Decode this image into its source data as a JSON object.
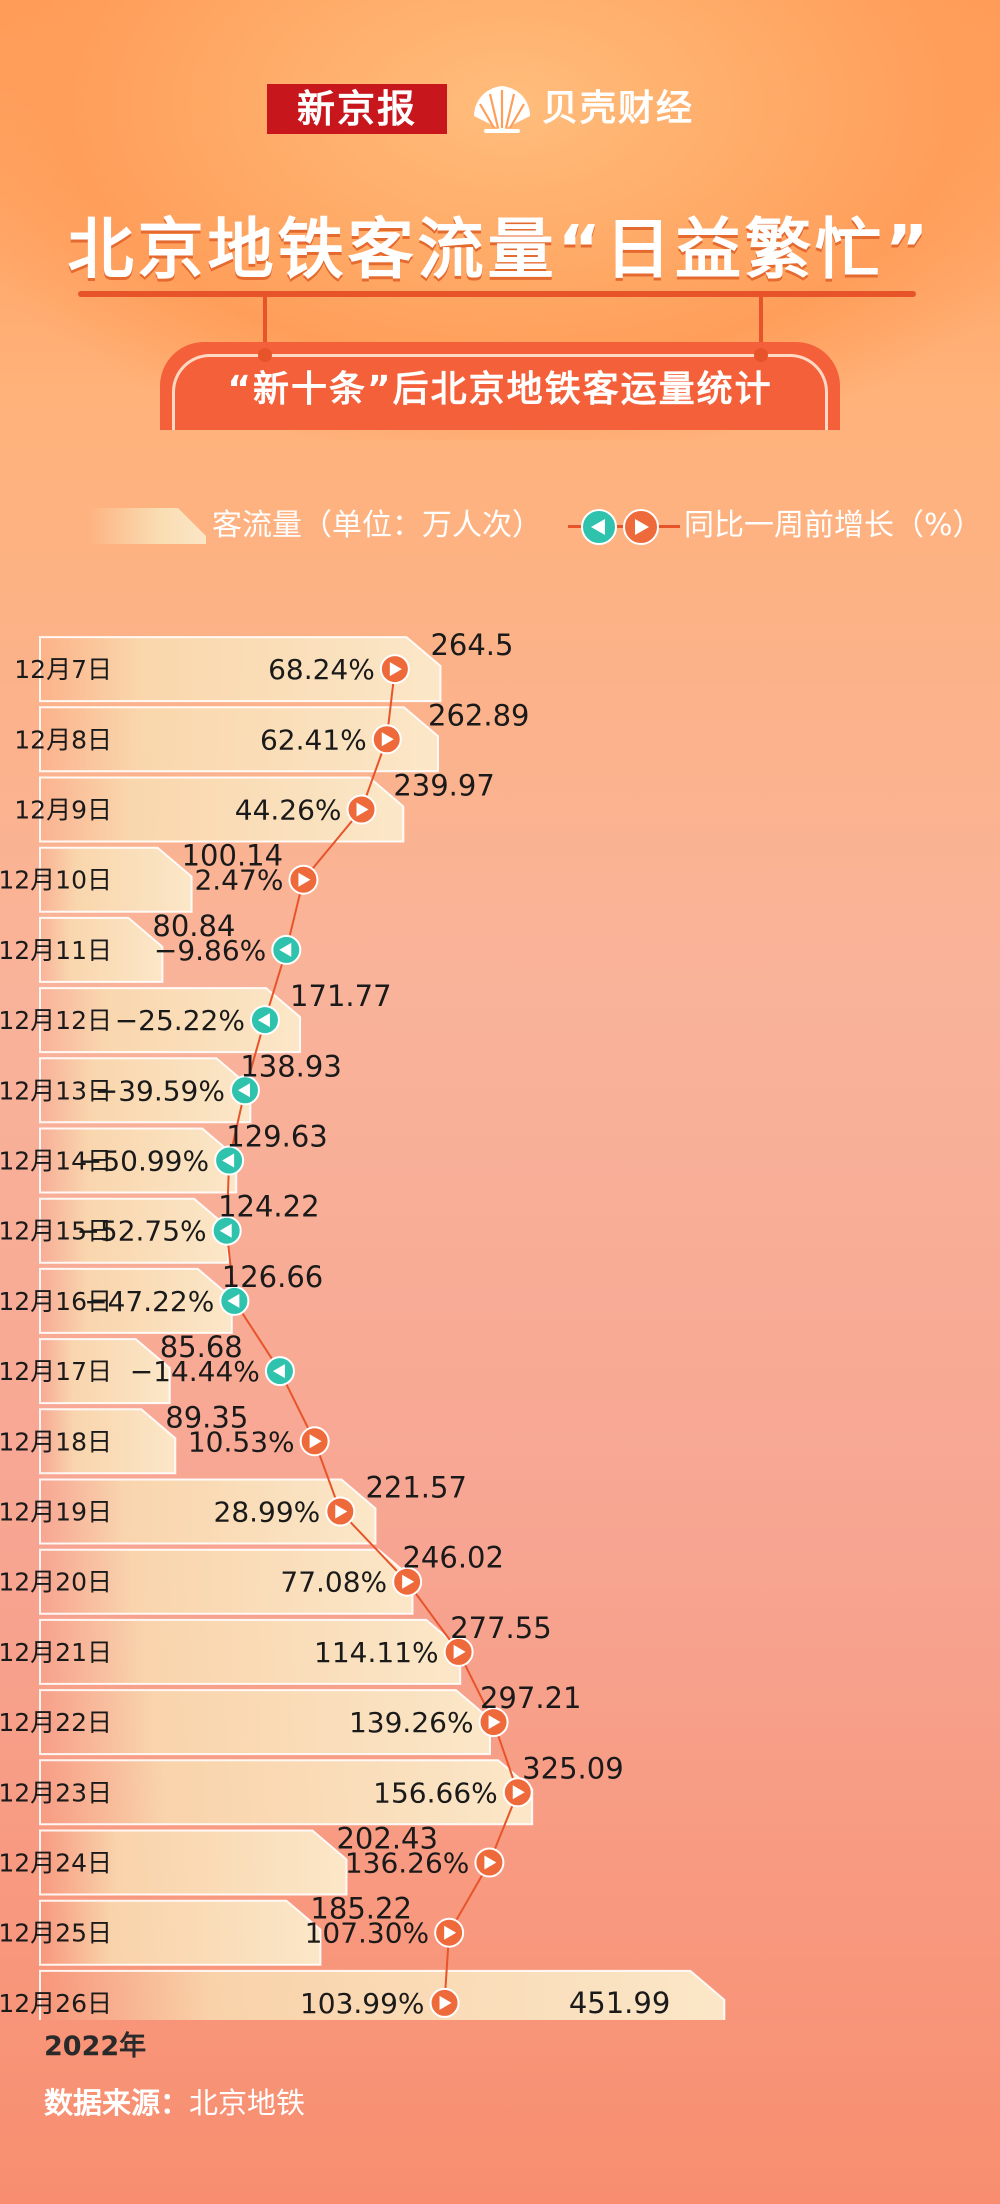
{
  "header": {
    "logo_xjb": "新京报",
    "logo_bk": "贝壳财经",
    "title": "北京地铁客流量“日益繁忙”",
    "subtitle": "“新十条”后北京地铁客运量统计"
  },
  "legend": {
    "bar_label": "客流量（单位：万人次）",
    "marker_label": "同比一周前增长（%）"
  },
  "colors": {
    "bar_fill": "#f9ddb2",
    "marker_up": "#ef6a3b",
    "marker_down": "#2fc2ad",
    "line": "#e8542a"
  },
  "chart_data": {
    "type": "bar",
    "orientation": "horizontal",
    "categories": [
      "12月7日",
      "12月8日",
      "12月9日",
      "12月10日",
      "12月11日",
      "12月12日",
      "12月13日",
      "12月14日",
      "12月15日",
      "12月16日",
      "12月17日",
      "12月18日",
      "12月19日",
      "12月20日",
      "12月21日",
      "12月22日",
      "12月23日",
      "12月24日",
      "12月25日",
      "12月26日"
    ],
    "series": [
      {
        "name": "客流量（单位：万人次）",
        "values": [
          264.5,
          262.89,
          239.97,
          100.14,
          80.84,
          171.77,
          138.93,
          129.63,
          124.22,
          126.66,
          85.68,
          89.35,
          221.57,
          246.02,
          277.55,
          297.21,
          325.09,
          202.43,
          185.22,
          451.99
        ],
        "labels": [
          "264.5",
          "262.89",
          "239.97",
          "100.14",
          "80.84",
          "171.77",
          "138.93",
          "129.63",
          "124.22",
          "126.66",
          "85.68",
          "89.35",
          "221.57",
          "246.02",
          "277.55",
          "297.21",
          "325.09",
          "202.43",
          "185.22",
          "451.99"
        ]
      },
      {
        "name": "同比一周前增长（%）",
        "values": [
          68.24,
          62.41,
          44.26,
          2.47,
          -9.86,
          -25.22,
          -39.59,
          -50.99,
          -52.75,
          -47.22,
          -14.44,
          10.53,
          28.99,
          77.08,
          114.11,
          139.26,
          156.66,
          136.26,
          107.3,
          103.99
        ],
        "labels": [
          "68.24%",
          "62.41%",
          "44.26%",
          "2.47%",
          "−9.86%",
          "−25.22%",
          "−39.59%",
          "−50.99%",
          "−52.75%",
          "−47.22%",
          "−14.44%",
          "10.53%",
          "28.99%",
          "77.08%",
          "114.11%",
          "139.26%",
          "156.66%",
          "136.26%",
          "107.30%",
          "103.99%"
        ]
      }
    ]
  },
  "footer": {
    "year": "2022年",
    "source_label": "数据来源：",
    "source_value": "北京地铁"
  }
}
